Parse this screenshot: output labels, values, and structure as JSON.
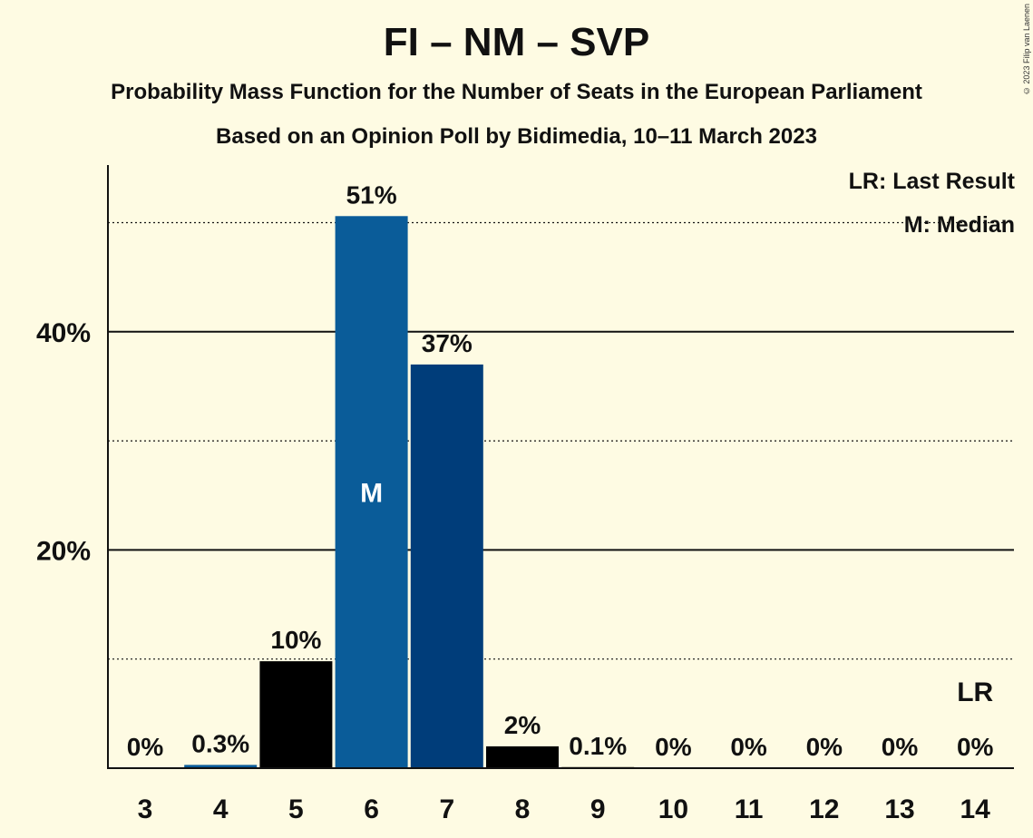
{
  "copyright": "© 2023 Filip van Laenen",
  "legend": {
    "last_result": "LR: Last Result",
    "median": "M: Median"
  },
  "chart_data": {
    "type": "bar",
    "title": "FI – NM – SVP",
    "subtitle": "Probability Mass Function for the Number of Seats in the European Parliament",
    "source": "Based on an Opinion Poll by Bidimedia, 10–11 March 2023",
    "xlabel": "",
    "ylabel": "",
    "categories": [
      "3",
      "4",
      "5",
      "6",
      "7",
      "8",
      "9",
      "10",
      "11",
      "12",
      "13",
      "14"
    ],
    "values": [
      0,
      0.3,
      9.8,
      50.6,
      37.0,
      2.0,
      0.1,
      0,
      0,
      0,
      0,
      0
    ],
    "labels": [
      "0%",
      "0.3%",
      "10%",
      "51%",
      "37%",
      "2%",
      "0.1%",
      "0%",
      "0%",
      "0%",
      "0%",
      "0%"
    ],
    "bar_colors": [
      "#000000",
      "#0a5c99",
      "#000000",
      "#0a5c99",
      "#003d7a",
      "#000000",
      "#000000",
      "#000000",
      "#000000",
      "#000000",
      "#000000",
      "#000000"
    ],
    "ylim": [
      0,
      55
    ],
    "yticks": [
      20,
      40
    ],
    "ytick_labels": [
      "20%",
      "40%"
    ],
    "minor_gridlines": [
      10,
      30,
      50
    ],
    "median_category": "6",
    "median_marker": "M",
    "last_result_category": "14",
    "last_result_marker": "LR",
    "legend_position": "top-right"
  }
}
